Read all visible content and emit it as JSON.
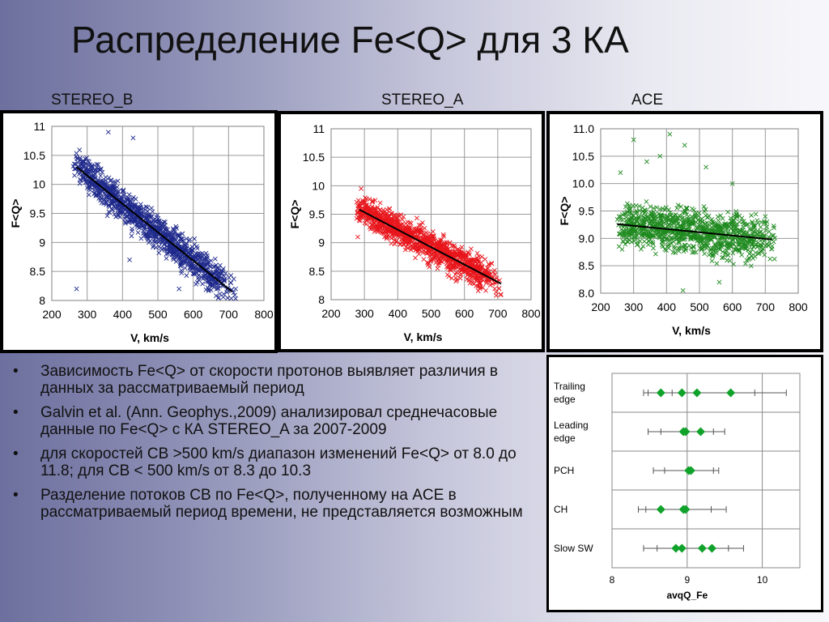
{
  "title": "Распределение Fe<Q> для 3 КА",
  "spacecraft_labels": [
    "STEREO_B",
    "STEREO_A",
    "ACE"
  ],
  "bullets": [
    "Зависимость Fe<Q>  от скорости протонов выявляет различия в данных за рассматриваемый период",
    "Galvin et al. (Ann. Geophys.,2009) анализировал среднечасовые данные по Fe<Q> с КА STEREO_A за 2007-2009",
    "для скоростей СВ >500 km/s диапазон изменений Fe<Q> от 8.0 до 11.8; для СВ < 500 km/s от 8.3 до 10.3",
    "Разделение потоков СВ по Fe<Q>, полученному на ACE в рассматриваемый период времени, не представляется возможным"
  ],
  "colors": {
    "stereo_b": "#1f2a8c",
    "stereo_a": "#e8161c",
    "ace": "#1f8a1f",
    "slow_sw_diamonds": "#10a22a",
    "trend": "#000000"
  },
  "chart_data": [
    {
      "type": "scatter",
      "title": "",
      "xlabel": "V, km/s",
      "ylabel": "F<Q>",
      "xlim": [
        200,
        800
      ],
      "ylim": [
        8,
        11
      ],
      "x_ticks": [
        200,
        300,
        400,
        500,
        600,
        700,
        800
      ],
      "y_ticks": [
        "8",
        "8.5",
        "9",
        "9.5",
        "10",
        "10.5",
        "11"
      ],
      "grid": true,
      "series": [
        {
          "color": "#1f2a8c",
          "marker": "x",
          "x_range": [
            260,
            720
          ],
          "trend": {
            "x": [
              270,
              710
            ],
            "y": [
              10.3,
              8.15
            ]
          },
          "spread": 0.3,
          "sample_count": 1100
        }
      ],
      "scattered_outliers": [
        {
          "x": 270,
          "y": 8.2
        },
        {
          "x": 420,
          "y": 8.7
        },
        {
          "x": 560,
          "y": 8.2
        },
        {
          "x": 430,
          "y": 10.8
        },
        {
          "x": 360,
          "y": 10.9
        },
        {
          "x": 720,
          "y": 8.2
        }
      ]
    },
    {
      "type": "scatter",
      "title": "",
      "xlabel": "V, km/s",
      "ylabel": "F<Q>",
      "xlim": [
        200,
        800
      ],
      "ylim": [
        8,
        11
      ],
      "x_ticks": [
        200,
        300,
        400,
        500,
        600,
        700,
        800
      ],
      "y_ticks": [
        "8",
        "8.5",
        "9",
        "9.5",
        "10",
        "10.5",
        "11"
      ],
      "grid": true,
      "series": [
        {
          "color": "#e8161c",
          "marker": "x",
          "x_range": [
            275,
            710
          ],
          "trend": {
            "x": [
              285,
              710
            ],
            "y": [
              9.58,
              8.28
            ]
          },
          "spread": 0.28,
          "sample_count": 1100
        }
      ],
      "scattered_outliers": [
        {
          "x": 290,
          "y": 9.95
        },
        {
          "x": 280,
          "y": 9.1
        }
      ]
    },
    {
      "type": "scatter",
      "title": "",
      "xlabel": "V, km/s",
      "ylabel": "F<Q>",
      "xlim": [
        200,
        800
      ],
      "ylim": [
        8,
        11
      ],
      "x_ticks": [
        200,
        300,
        400,
        500,
        600,
        700,
        800
      ],
      "y_ticks": [
        "8.0",
        "8.5",
        "9.0",
        "9.5",
        "10.0",
        "10.5",
        "11.0"
      ],
      "grid": true,
      "series": [
        {
          "color": "#1f8a1f",
          "marker": "x",
          "x_range": [
            250,
            730
          ],
          "trend": {
            "x": [
              250,
              720
            ],
            "y": [
              9.26,
              8.98
            ]
          },
          "spread": 0.42,
          "sample_count": 1000
        }
      ],
      "scattered_outliers": [
        {
          "x": 260,
          "y": 10.2
        },
        {
          "x": 340,
          "y": 10.4
        },
        {
          "x": 380,
          "y": 10.5
        },
        {
          "x": 410,
          "y": 10.9
        },
        {
          "x": 455,
          "y": 10.7
        },
        {
          "x": 520,
          "y": 10.3
        },
        {
          "x": 600,
          "y": 10.0
        },
        {
          "x": 700,
          "y": 9.4
        },
        {
          "x": 300,
          "y": 10.8
        },
        {
          "x": 560,
          "y": 8.2
        },
        {
          "x": 450,
          "y": 8.05
        }
      ]
    },
    {
      "type": "scatter",
      "title": "",
      "xlabel": "avqQ_Fe",
      "ylabel": "",
      "xlim": [
        8,
        10.5
      ],
      "x_ticks": [
        8,
        9,
        10
      ],
      "grid": true,
      "categories": [
        "Trailing\nedge",
        "Leading\nedge",
        "PCH",
        "CH",
        "Slow SW"
      ],
      "series": [
        {
          "category": "Trailing\nedge",
          "points": [
            8.65,
            8.93,
            9.13,
            9.58
          ],
          "whisker": [
            8.42,
            10.32
          ],
          "inner_ticks": [
            8.48,
            8.8,
            9.9
          ]
        },
        {
          "category": "Leading\nedge",
          "points": [
            8.95,
            8.98,
            9.18
          ],
          "whisker": [
            8.48,
            9.5
          ],
          "inner_ticks": [
            8.65,
            9.35
          ]
        },
        {
          "category": "PCH",
          "points": [
            9.02,
            9.05
          ],
          "whisker": [
            8.55,
            9.42
          ],
          "inner_ticks": [
            8.7,
            9.35
          ]
        },
        {
          "category": "CH",
          "points": [
            8.65,
            8.95,
            8.98
          ],
          "whisker": [
            8.35,
            9.52
          ],
          "inner_ticks": [
            8.45,
            9.32
          ]
        },
        {
          "category": "Slow SW",
          "points": [
            8.85,
            8.93,
            9.2,
            9.33
          ],
          "whisker": [
            8.42,
            9.75
          ],
          "inner_ticks": [
            8.6,
            9.55
          ]
        }
      ]
    }
  ]
}
